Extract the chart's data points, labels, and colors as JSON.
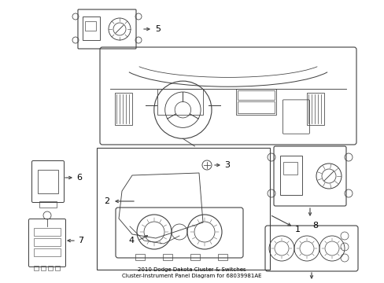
{
  "title": "2010 Dodge Dakota Cluster & Switches\nCluster-Instrument Panel Diagram for 68039981AE",
  "background_color": "#ffffff",
  "line_color": "#404040",
  "text_color": "#000000",
  "fig_width": 4.89,
  "fig_height": 3.6,
  "dpi": 100
}
